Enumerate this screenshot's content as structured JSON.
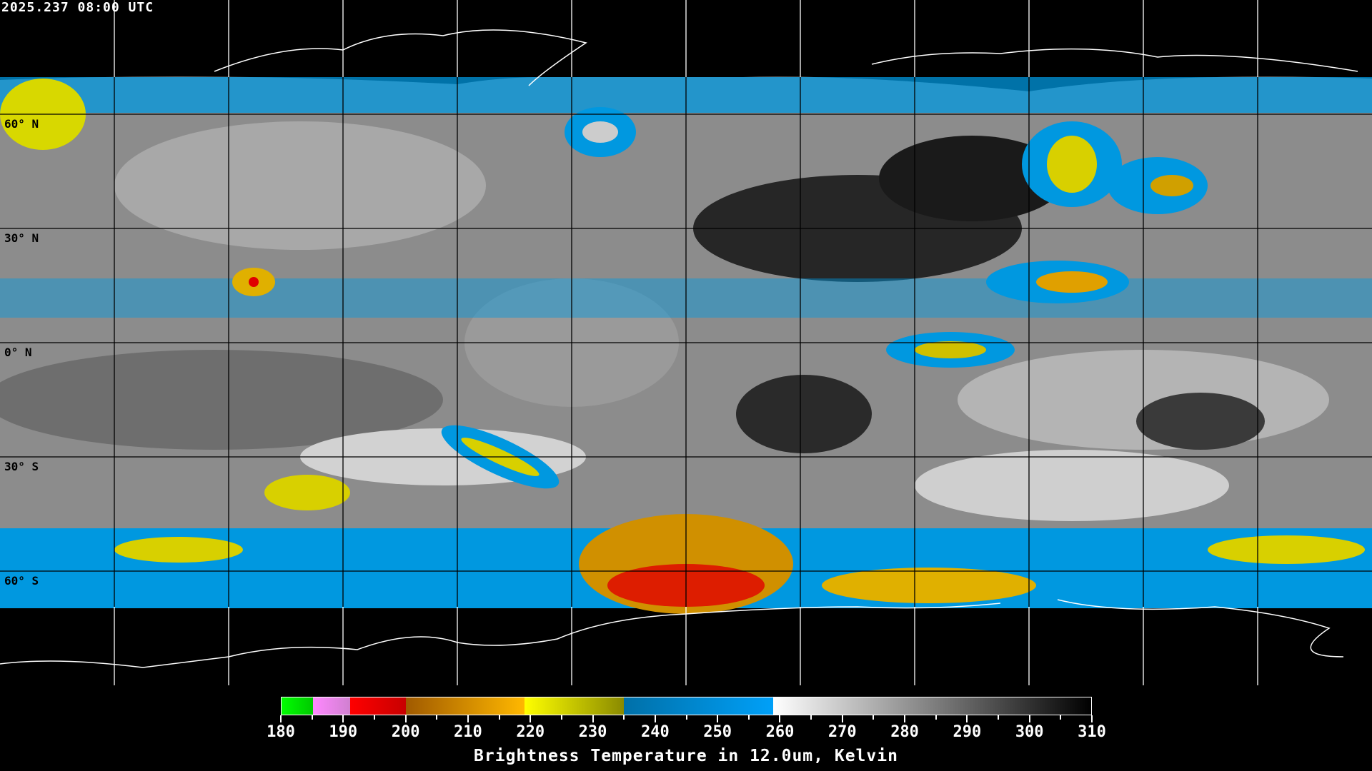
{
  "timestamp": "2025.237 08:00 UTC",
  "map": {
    "projection": "equirectangular",
    "lat_labels": [
      "60° N",
      "30° N",
      "0° N",
      "30° S",
      "60° S"
    ],
    "grid_longitudes_deg": [
      -150,
      -120,
      -90,
      -60,
      -30,
      0,
      30,
      60,
      90,
      120,
      150
    ],
    "grid_latitudes_deg": [
      60,
      30,
      0,
      -30,
      -60
    ]
  },
  "colorbar": {
    "title": "Brightness Temperature in 12.0um, Kelvin",
    "min": 180,
    "max": 310,
    "tick_labels": [
      "180",
      "190",
      "200",
      "210",
      "220",
      "230",
      "240",
      "250",
      "260",
      "270",
      "280",
      "290",
      "300",
      "310"
    ],
    "segments": [
      {
        "from": 180,
        "to": 185,
        "colors": [
          "#00ff00",
          "#00c800"
        ]
      },
      {
        "from": 185,
        "to": 191,
        "colors": [
          "#ff88ff",
          "#d080d0"
        ]
      },
      {
        "from": 191,
        "to": 200,
        "colors": [
          "#ff0000",
          "#c80000"
        ]
      },
      {
        "from": 200,
        "to": 219,
        "colors": [
          "#a05a00",
          "#ffb800"
        ]
      },
      {
        "from": 219,
        "to": 235,
        "colors": [
          "#ffff00",
          "#8a8a00"
        ]
      },
      {
        "from": 235,
        "to": 259,
        "colors": [
          "#0070a8",
          "#00a0f8"
        ]
      },
      {
        "from": 259,
        "to": 310,
        "colors": [
          "#ffffff",
          "#000000"
        ]
      }
    ]
  }
}
